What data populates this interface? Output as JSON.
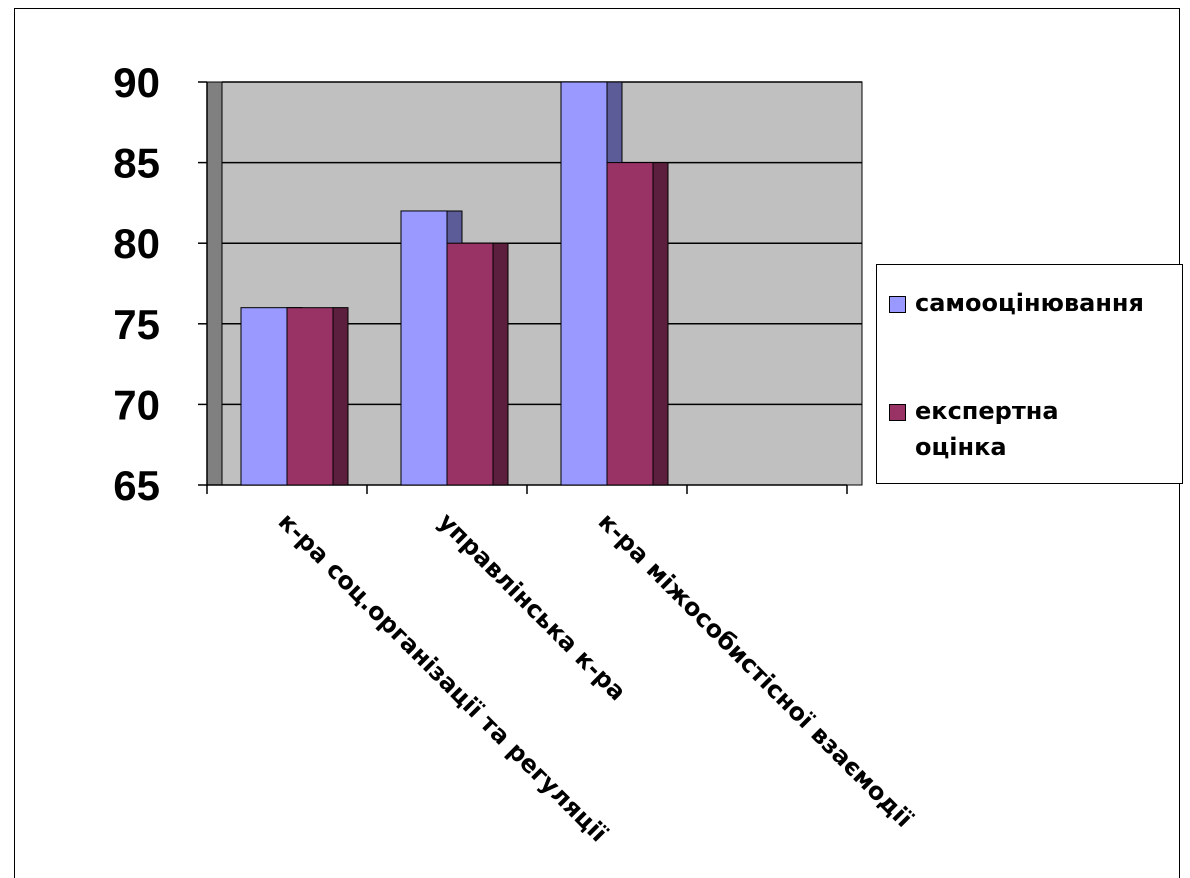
{
  "chart_data": {
    "type": "bar",
    "categories": [
      "к-ра соц.організації та регуляції",
      "управлінська к-ра",
      "к-ра міжособистісної взаємодії"
    ],
    "series": [
      {
        "name": "самооцінювання",
        "values": [
          76,
          82,
          90
        ],
        "color": "#9999ff"
      },
      {
        "name": "експертна\nоцінка",
        "values": [
          76,
          80,
          85
        ],
        "color": "#993366"
      }
    ],
    "ylim": [
      65,
      90
    ],
    "yticks": [
      "90",
      "85",
      "80",
      "75",
      "70",
      "65"
    ],
    "grid": true,
    "legend_position": "right",
    "plot_background": "#c0c0c0",
    "title": "",
    "xlabel": "",
    "ylabel": ""
  }
}
